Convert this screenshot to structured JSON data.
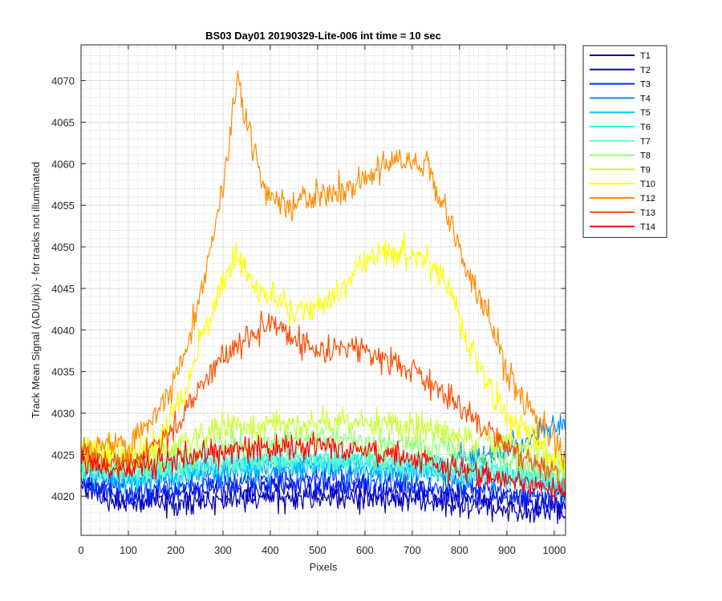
{
  "chart_data": {
    "type": "line",
    "title": "BS03 Day01 20190329-Lite-006 int time = 10 sec",
    "xlabel": "Pixels",
    "ylabel": "Track Mean Signal (ADU/pix) - for tracks not illuminated",
    "xlim": [
      0,
      1024
    ],
    "ylim": [
      4015.3,
      4074.3
    ],
    "xticks": [
      0,
      100,
      200,
      300,
      400,
      500,
      600,
      700,
      800,
      900,
      1000
    ],
    "yticks": [
      4020,
      4025,
      4030,
      4035,
      4040,
      4045,
      4050,
      4055,
      4060,
      4065,
      4070
    ],
    "grid": true,
    "minor_grid": true,
    "legend_position": "outside-top-right",
    "series": [
      {
        "name": "T1",
        "color": "#0000a8",
        "noise": 1.1,
        "profile": [
          [
            0,
            4021
          ],
          [
            100,
            4019
          ],
          [
            300,
            4019.5
          ],
          [
            500,
            4020
          ],
          [
            700,
            4019.5
          ],
          [
            900,
            4018.5
          ],
          [
            1024,
            4018
          ]
        ]
      },
      {
        "name": "T2",
        "color": "#0000e0",
        "noise": 1.1,
        "profile": [
          [
            0,
            4021.5
          ],
          [
            100,
            4020
          ],
          [
            300,
            4020.5
          ],
          [
            500,
            4021
          ],
          [
            700,
            4020.5
          ],
          [
            900,
            4019.5
          ],
          [
            1024,
            4019
          ]
        ]
      },
      {
        "name": "T3",
        "color": "#0030ff",
        "noise": 1.1,
        "profile": [
          [
            0,
            4022
          ],
          [
            100,
            4020.5
          ],
          [
            300,
            4021.5
          ],
          [
            500,
            4022
          ],
          [
            700,
            4021.5
          ],
          [
            900,
            4020.5
          ],
          [
            1024,
            4020
          ]
        ]
      },
      {
        "name": "T4",
        "color": "#0090ff",
        "noise": 1.2,
        "profile": [
          [
            0,
            4023.5
          ],
          [
            100,
            4022
          ],
          [
            300,
            4023
          ],
          [
            500,
            4023.5
          ],
          [
            700,
            4023
          ],
          [
            900,
            4025.5
          ],
          [
            950,
            4027
          ],
          [
            1000,
            4028.5
          ],
          [
            1024,
            4029
          ]
        ]
      },
      {
        "name": "T5",
        "color": "#00c8ff",
        "noise": 1.1,
        "profile": [
          [
            0,
            4023
          ],
          [
            100,
            4022
          ],
          [
            300,
            4023.5
          ],
          [
            500,
            4024
          ],
          [
            700,
            4023
          ],
          [
            900,
            4022
          ],
          [
            1024,
            4021.5
          ]
        ]
      },
      {
        "name": "T6",
        "color": "#30f0f0",
        "noise": 1.1,
        "profile": [
          [
            0,
            4023.5
          ],
          [
            100,
            4022.5
          ],
          [
            300,
            4024
          ],
          [
            500,
            4024.5
          ],
          [
            700,
            4023.5
          ],
          [
            900,
            4022.5
          ],
          [
            1024,
            4022
          ]
        ]
      },
      {
        "name": "T7",
        "color": "#60ffc0",
        "noise": 1.1,
        "profile": [
          [
            0,
            4023.5
          ],
          [
            100,
            4023
          ],
          [
            300,
            4024
          ],
          [
            500,
            4024.5
          ],
          [
            700,
            4024
          ],
          [
            900,
            4023
          ],
          [
            1024,
            4022.5
          ]
        ]
      },
      {
        "name": "T8",
        "color": "#90ff70",
        "noise": 1.2,
        "profile": [
          [
            0,
            4024
          ],
          [
            100,
            4023.5
          ],
          [
            300,
            4026
          ],
          [
            500,
            4027
          ],
          [
            700,
            4026
          ],
          [
            900,
            4024.5
          ],
          [
            1024,
            4023
          ]
        ]
      },
      {
        "name": "T9",
        "color": "#c8ff30",
        "noise": 1.2,
        "profile": [
          [
            0,
            4025
          ],
          [
            100,
            4024.5
          ],
          [
            300,
            4028
          ],
          [
            500,
            4029
          ],
          [
            700,
            4028.5
          ],
          [
            850,
            4027
          ],
          [
            1024,
            4024.5
          ]
        ]
      },
      {
        "name": "T10",
        "color": "#ffff00",
        "noise": 1.4,
        "profile": [
          [
            0,
            4026
          ],
          [
            100,
            4025
          ],
          [
            150,
            4026
          ],
          [
            200,
            4030
          ],
          [
            250,
            4038
          ],
          [
            300,
            4046
          ],
          [
            330,
            4049
          ],
          [
            370,
            4045
          ],
          [
            450,
            4042.5
          ],
          [
            500,
            4043
          ],
          [
            550,
            4045
          ],
          [
            600,
            4048
          ],
          [
            660,
            4049.5
          ],
          [
            720,
            4048.5
          ],
          [
            780,
            4045
          ],
          [
            820,
            4038
          ],
          [
            860,
            4034
          ],
          [
            900,
            4029
          ],
          [
            950,
            4027.5
          ],
          [
            1024,
            4022.5
          ]
        ]
      },
      {
        "name": "T12",
        "color": "#ff8c00",
        "noise": 1.4,
        "profile": [
          [
            0,
            4026
          ],
          [
            100,
            4026
          ],
          [
            150,
            4029
          ],
          [
            200,
            4034
          ],
          [
            250,
            4043
          ],
          [
            300,
            4057
          ],
          [
            330,
            4070.5
          ],
          [
            345,
            4066
          ],
          [
            380,
            4058
          ],
          [
            420,
            4055
          ],
          [
            480,
            4055.5
          ],
          [
            540,
            4056.5
          ],
          [
            600,
            4058.5
          ],
          [
            660,
            4060.5
          ],
          [
            700,
            4060.5
          ],
          [
            740,
            4058.5
          ],
          [
            800,
            4050
          ],
          [
            850,
            4043
          ],
          [
            900,
            4035
          ],
          [
            950,
            4030
          ],
          [
            1000,
            4027
          ],
          [
            1024,
            4023
          ]
        ]
      },
      {
        "name": "T13",
        "color": "#ff4c00",
        "noise": 1.2,
        "profile": [
          [
            0,
            4025
          ],
          [
            100,
            4024
          ],
          [
            200,
            4028
          ],
          [
            250,
            4033
          ],
          [
            300,
            4037
          ],
          [
            350,
            4039
          ],
          [
            400,
            4041
          ],
          [
            450,
            4039
          ],
          [
            500,
            4037.5
          ],
          [
            600,
            4037.5
          ],
          [
            700,
            4035
          ],
          [
            800,
            4031
          ],
          [
            900,
            4026
          ],
          [
            1000,
            4023
          ],
          [
            1024,
            4021
          ]
        ]
      },
      {
        "name": "T14",
        "color": "#ff0000",
        "noise": 1.1,
        "profile": [
          [
            0,
            4024
          ],
          [
            100,
            4023
          ],
          [
            200,
            4024.5
          ],
          [
            300,
            4025.5
          ],
          [
            500,
            4026
          ],
          [
            600,
            4025.5
          ],
          [
            700,
            4024.5
          ],
          [
            900,
            4022
          ],
          [
            1024,
            4020.5
          ]
        ]
      }
    ]
  }
}
